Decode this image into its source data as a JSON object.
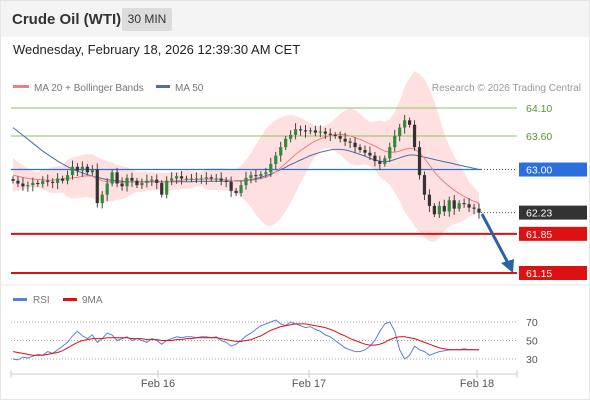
{
  "header": {
    "instrument": "Crude Oil (WTI)",
    "timeframe": "30 MIN",
    "datetime": "Wednesday, February 18, 2026 12:39:30 AM CET"
  },
  "legend": {
    "ma20_label": "MA 20 + Bollinger Bands",
    "ma50_label": "MA 50",
    "credit": "Research © 2026 Trading Central",
    "rsi_label": "RSI",
    "ma9_label": "9MA"
  },
  "colors": {
    "up_candle": "#2e8b3a",
    "down_candle": "#333333",
    "bollinger_band": "#ffd6d6",
    "ma20": "#f07f7f",
    "ma50": "#4a6ea8",
    "resistance": "#8ec45a",
    "pivot": "#2b6fdc",
    "support": "#dd1111",
    "current_price": "#333333",
    "rsi": "#5a7fe0",
    "rsi_ma9": "#dd1111",
    "arrow": "#2a62a8"
  },
  "chart_data": {
    "type": "candlestick",
    "title": "Crude Oil (WTI)",
    "interval": "30 MIN",
    "price_range": [
      60.9,
      64.4
    ],
    "x_ticks": [
      "Feb 16",
      "Feb 17",
      "Feb 18"
    ],
    "levels": [
      {
        "label": "64.10",
        "value": 64.1,
        "kind": "resistance"
      },
      {
        "label": "63.60",
        "value": 63.6,
        "kind": "resistance"
      },
      {
        "label": "63.00",
        "value": 63.0,
        "kind": "pivot"
      },
      {
        "label": "62.23",
        "value": 62.23,
        "kind": "last"
      },
      {
        "label": "61.85",
        "value": 61.85,
        "kind": "support"
      },
      {
        "label": "61.15",
        "value": 61.15,
        "kind": "support"
      }
    ],
    "close": [
      62.8,
      62.75,
      62.7,
      62.72,
      62.76,
      62.74,
      62.8,
      62.78,
      62.76,
      62.84,
      62.8,
      62.9,
      63.05,
      62.98,
      63.05,
      62.95,
      63.0,
      62.4,
      62.55,
      62.75,
      62.95,
      62.75,
      62.7,
      62.85,
      62.8,
      62.72,
      62.76,
      62.8,
      62.82,
      62.76,
      62.55,
      62.8,
      62.84,
      62.88,
      62.84,
      62.84,
      62.84,
      62.84,
      62.84,
      62.86,
      62.84,
      62.84,
      62.8,
      62.78,
      62.62,
      62.58,
      62.72,
      62.85,
      62.9,
      62.88,
      62.92,
      62.95,
      63.1,
      63.25,
      63.4,
      63.55,
      63.62,
      63.72,
      63.7,
      63.68,
      63.7,
      63.66,
      63.68,
      63.64,
      63.62,
      63.6,
      63.55,
      63.5,
      63.48,
      63.4,
      63.35,
      63.3,
      63.25,
      63.15,
      63.1,
      63.2,
      63.4,
      63.6,
      63.75,
      63.88,
      63.8,
      63.4,
      62.9,
      62.55,
      62.35,
      62.2,
      62.35,
      62.25,
      62.45,
      62.3,
      62.4,
      62.38,
      62.32,
      62.3,
      62.23
    ],
    "ma20": [
      62.9,
      62.88,
      62.86,
      62.84,
      62.83,
      62.82,
      62.82,
      62.81,
      62.81,
      62.82,
      62.83,
      62.84,
      62.85,
      62.86,
      62.88,
      62.89,
      62.88,
      62.84,
      62.8,
      62.78,
      62.78,
      62.77,
      62.77,
      62.77,
      62.78,
      62.78,
      62.78,
      62.79,
      62.79,
      62.79,
      62.78,
      62.78,
      62.79,
      62.8,
      62.81,
      62.82,
      62.82,
      62.82,
      62.83,
      62.83,
      62.83,
      62.83,
      62.83,
      62.82,
      62.8,
      62.79,
      62.79,
      62.8,
      62.81,
      62.82,
      62.84,
      62.86,
      62.9,
      62.96,
      63.03,
      63.11,
      63.19,
      63.27,
      63.34,
      63.4,
      63.46,
      63.51,
      63.55,
      63.58,
      63.61,
      63.62,
      63.63,
      63.62,
      63.6,
      63.57,
      63.54,
      63.5,
      63.46,
      63.42,
      63.37,
      63.33,
      63.31,
      63.31,
      63.33,
      63.36,
      63.38,
      63.37,
      63.3,
      63.2,
      63.08,
      62.96,
      62.86,
      62.77,
      62.7,
      62.63,
      62.57,
      62.52,
      62.47,
      62.43,
      62.4
    ],
    "ma50": [
      63.75,
      63.68,
      63.61,
      63.54,
      63.47,
      63.4,
      63.33,
      63.27,
      63.21,
      63.15,
      63.1,
      63.05,
      63.01,
      62.97,
      62.94,
      62.91,
      62.88,
      62.86,
      62.84,
      62.82,
      62.81,
      62.8,
      62.79,
      62.78,
      62.78,
      62.78,
      62.78,
      62.78,
      62.78,
      62.78,
      62.78,
      62.78,
      62.78,
      62.78,
      62.78,
      62.78,
      62.78,
      62.79,
      62.79,
      62.79,
      62.79,
      62.79,
      62.79,
      62.79,
      62.79,
      62.8,
      62.8,
      62.81,
      62.82,
      62.84,
      62.86,
      62.89,
      62.92,
      62.96,
      63.0,
      63.04,
      63.09,
      63.13,
      63.17,
      63.21,
      63.25,
      63.28,
      63.31,
      63.33,
      63.35,
      63.36,
      63.36,
      63.35,
      63.33,
      63.3,
      63.27,
      63.24,
      63.2,
      63.17,
      63.15,
      63.14,
      63.15,
      63.18,
      63.21,
      63.24,
      63.26,
      63.26,
      63.24,
      63.22,
      63.2,
      63.18,
      63.16,
      63.14,
      63.12,
      63.1,
      63.08,
      63.06,
      63.04,
      63.02,
      63.0
    ],
    "rsi": {
      "ticks": [
        70,
        50,
        30
      ],
      "range": [
        20,
        80
      ],
      "rsi": [
        30,
        29,
        32,
        31,
        33,
        35,
        34,
        38,
        36,
        40,
        44,
        48,
        55,
        60,
        55,
        52,
        56,
        48,
        52,
        58,
        56,
        50,
        52,
        54,
        50,
        52,
        50,
        48,
        52,
        50,
        46,
        50,
        52,
        54,
        53,
        54,
        54,
        53,
        54,
        54,
        53,
        54,
        50,
        48,
        44,
        46,
        50,
        55,
        58,
        62,
        66,
        68,
        70,
        72,
        68,
        66,
        70,
        68,
        66,
        64,
        65,
        62,
        60,
        56,
        54,
        50,
        46,
        42,
        40,
        38,
        38,
        40,
        44,
        50,
        60,
        68,
        70,
        60,
        40,
        30,
        34,
        44,
        40,
        38,
        34,
        36,
        38,
        39,
        40,
        40,
        40,
        41,
        40,
        40,
        40
      ],
      "ma9": [
        38,
        37,
        36,
        35,
        34,
        34,
        34,
        35,
        36,
        37,
        39,
        42,
        45,
        48,
        50,
        51,
        52,
        52,
        52,
        53,
        53,
        53,
        53,
        53,
        52,
        52,
        52,
        51,
        51,
        51,
        50,
        50,
        50,
        51,
        51,
        52,
        52,
        53,
        53,
        53,
        53,
        53,
        52,
        51,
        50,
        49,
        49,
        50,
        51,
        53,
        55,
        58,
        61,
        63,
        65,
        66,
        67,
        68,
        68,
        68,
        67,
        66,
        65,
        64,
        62,
        60,
        57,
        55,
        52,
        50,
        48,
        46,
        45,
        45,
        46,
        48,
        51,
        53,
        54,
        54,
        53,
        52,
        50,
        48,
        46,
        44,
        42,
        41,
        40,
        40,
        40,
        40,
        40,
        40,
        40
      ]
    }
  }
}
